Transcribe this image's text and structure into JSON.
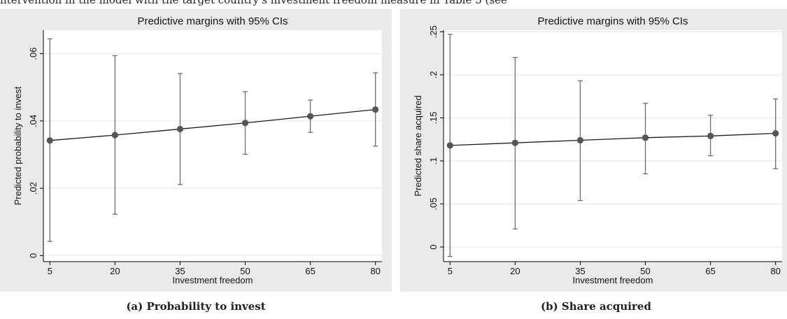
{
  "header_text": "ntervention in the model with the target country's investment freedom measure in Table 5 (see",
  "chart_data": [
    {
      "type": "line",
      "title": "Predictive margins with 95% CIs",
      "xlabel": "Investment freedom",
      "ylabel": "Predicted probability to invest",
      "x": [
        5,
        20,
        35,
        50,
        65,
        80
      ],
      "x_tick_labels": [
        "5",
        "20",
        "35",
        "50",
        "65",
        "80"
      ],
      "y_ticks": [
        0,
        0.02,
        0.04,
        0.06
      ],
      "y_tick_labels": [
        "0",
        ".02",
        ".04",
        ".06"
      ],
      "ylim": [
        -0.0018,
        0.067
      ],
      "xlim": [
        3.5,
        81.5
      ],
      "grid": true,
      "series": [
        {
          "values": [
            0.0342,
            0.0358,
            0.0376,
            0.0394,
            0.0414,
            0.0434
          ],
          "ci_lower": [
            0.0042,
            0.0123,
            0.0211,
            0.0301,
            0.0366,
            0.0325
          ],
          "ci_upper": [
            0.0644,
            0.0594,
            0.0541,
            0.0487,
            0.0462,
            0.0543
          ]
        }
      ],
      "caption": "(a) Probability to invest",
      "colors": {
        "line": "#1a1a1a",
        "marker": "#555555",
        "plot_bg": "#ffffff",
        "outer_bg": "#eaeaea",
        "grid": "#e6e6e6"
      }
    },
    {
      "type": "line",
      "title": "Predictive margins with 95% CIs",
      "xlabel": "Investment freedom",
      "ylabel": "Predicted share acquired",
      "x": [
        5,
        20,
        35,
        50,
        65,
        80
      ],
      "x_tick_labels": [
        "5",
        "20",
        "35",
        "50",
        "65",
        "80"
      ],
      "y_ticks": [
        0,
        0.05,
        0.1,
        0.15,
        0.2,
        0.25
      ],
      "y_tick_labels": [
        "0",
        ".05",
        ".1",
        ".15",
        ".2",
        ".25"
      ],
      "ylim": [
        -0.017,
        0.252
      ],
      "xlim": [
        3.5,
        81.5
      ],
      "grid": true,
      "series": [
        {
          "values": [
            0.118,
            0.121,
            0.124,
            0.127,
            0.129,
            0.132
          ],
          "ci_lower": [
            -0.011,
            0.021,
            0.054,
            0.085,
            0.106,
            0.091
          ],
          "ci_upper": [
            0.247,
            0.22,
            0.193,
            0.167,
            0.153,
            0.172
          ]
        }
      ],
      "caption": "(b) Share acquired",
      "colors": {
        "line": "#1a1a1a",
        "marker": "#555555",
        "plot_bg": "#ffffff",
        "outer_bg": "#eaeaea",
        "grid": "#e6e6e6"
      }
    }
  ]
}
